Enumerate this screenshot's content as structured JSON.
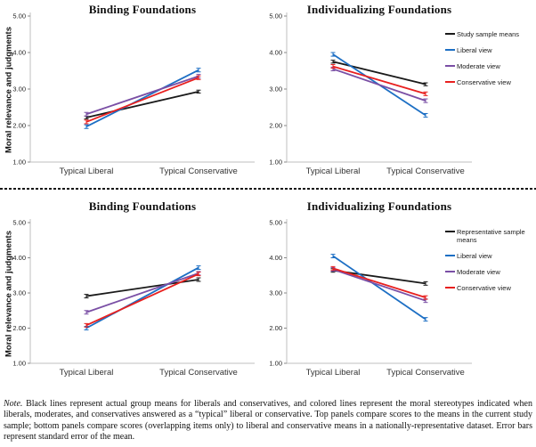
{
  "note": {
    "label": "Note.",
    "text": "Black lines represent actual group means for liberals and conservatives, and colored lines represent the moral stereotypes indicated when liberals, moderates, and conservatives answered as a “typical” liberal or conservative. Top panels compare scores to the means in the current study sample; bottom panels compare scores (overlapping items only) to liberal and conservative means in a nationally-representative dataset. Error bars represent standard error of the mean."
  },
  "colors": {
    "black": "#1a1a1a",
    "blue": "#1d6fc4",
    "purple": "#7a4fa5",
    "red": "#e8201f",
    "axis_line": "#bfbfbf",
    "tick_mark": "#8a8a8a",
    "tick_text": "#262626",
    "category_text": "#333333"
  },
  "chart_data": [
    {
      "type": "line",
      "panel": "top-left",
      "title": "Binding Foundations",
      "ylabel": "Moral relevance and judgments",
      "categories": [
        "Typical Liberal",
        "Typical Conservative"
      ],
      "ylim": [
        1.0,
        5.0
      ],
      "yticks": [
        "5.00",
        "4.00",
        "3.00",
        "2.00",
        "1.00"
      ],
      "legend": false,
      "error_bars": "standard error of the mean",
      "series": [
        {
          "name": "Study sample means",
          "color": "#1a1a1a",
          "values": [
            2.22,
            2.93
          ],
          "se": 0.04
        },
        {
          "name": "Liberal view",
          "color": "#1d6fc4",
          "values": [
            1.97,
            3.52
          ],
          "se": 0.05
        },
        {
          "name": "Moderate view",
          "color": "#7a4fa5",
          "values": [
            2.31,
            3.35
          ],
          "se": 0.05
        },
        {
          "name": "Conservative view",
          "color": "#e8201f",
          "values": [
            2.1,
            3.31
          ],
          "se": 0.05
        }
      ]
    },
    {
      "type": "line",
      "panel": "top-right",
      "title": "Individualizing Foundations",
      "ylabel": "",
      "categories": [
        "Typical Liberal",
        "Typical Conservative"
      ],
      "ylim": [
        1.0,
        5.0
      ],
      "yticks": [
        "5.00",
        "4.00",
        "3.00",
        "2.00",
        "1.00"
      ],
      "legend": true,
      "error_bars": "standard error of the mean",
      "series": [
        {
          "name": "Study sample means",
          "color": "#1a1a1a",
          "values": [
            3.75,
            3.13
          ],
          "se": 0.04
        },
        {
          "name": "Liberal view",
          "color": "#1d6fc4",
          "values": [
            3.95,
            2.28
          ],
          "se": 0.05
        },
        {
          "name": "Moderate view",
          "color": "#7a4fa5",
          "values": [
            3.55,
            2.68
          ],
          "se": 0.05
        },
        {
          "name": "Conservative view",
          "color": "#e8201f",
          "values": [
            3.62,
            2.87
          ],
          "se": 0.05
        }
      ]
    },
    {
      "type": "line",
      "panel": "bottom-left",
      "title": "Binding Foundations",
      "ylabel": "Moral relevance and judgments",
      "categories": [
        "Typical Liberal",
        "Typical Conservative"
      ],
      "ylim": [
        1.0,
        5.0
      ],
      "yticks": [
        "5.00",
        "4.00",
        "3.00",
        "2.00",
        "1.00"
      ],
      "legend": false,
      "error_bars": "standard error of the mean",
      "series": [
        {
          "name": "Representative sample means",
          "color": "#1a1a1a",
          "values": [
            2.91,
            3.38
          ],
          "se": 0.05
        },
        {
          "name": "Liberal view",
          "color": "#1d6fc4",
          "values": [
            2.0,
            3.72
          ],
          "se": 0.05
        },
        {
          "name": "Moderate view",
          "color": "#7a4fa5",
          "values": [
            2.45,
            3.56
          ],
          "se": 0.05
        },
        {
          "name": "Conservative view",
          "color": "#e8201f",
          "values": [
            2.08,
            3.54
          ],
          "se": 0.05
        }
      ]
    },
    {
      "type": "line",
      "panel": "bottom-right",
      "title": "Individualizing Foundations",
      "ylabel": "",
      "categories": [
        "Typical Liberal",
        "Typical Conservative"
      ],
      "ylim": [
        1.0,
        5.0
      ],
      "yticks": [
        "5.00",
        "4.00",
        "3.00",
        "2.00",
        "1.00"
      ],
      "legend": true,
      "error_bars": "standard error of the mean",
      "series": [
        {
          "name": "Representative sample means",
          "color": "#1a1a1a",
          "values": [
            3.64,
            3.27
          ],
          "se": 0.05
        },
        {
          "name": "Liberal view",
          "color": "#1d6fc4",
          "values": [
            4.05,
            2.25
          ],
          "se": 0.05
        },
        {
          "name": "Moderate view",
          "color": "#7a4fa5",
          "values": [
            3.67,
            2.78
          ],
          "se": 0.05
        },
        {
          "name": "Conservative view",
          "color": "#e8201f",
          "values": [
            3.7,
            2.87
          ],
          "se": 0.05
        }
      ]
    }
  ]
}
